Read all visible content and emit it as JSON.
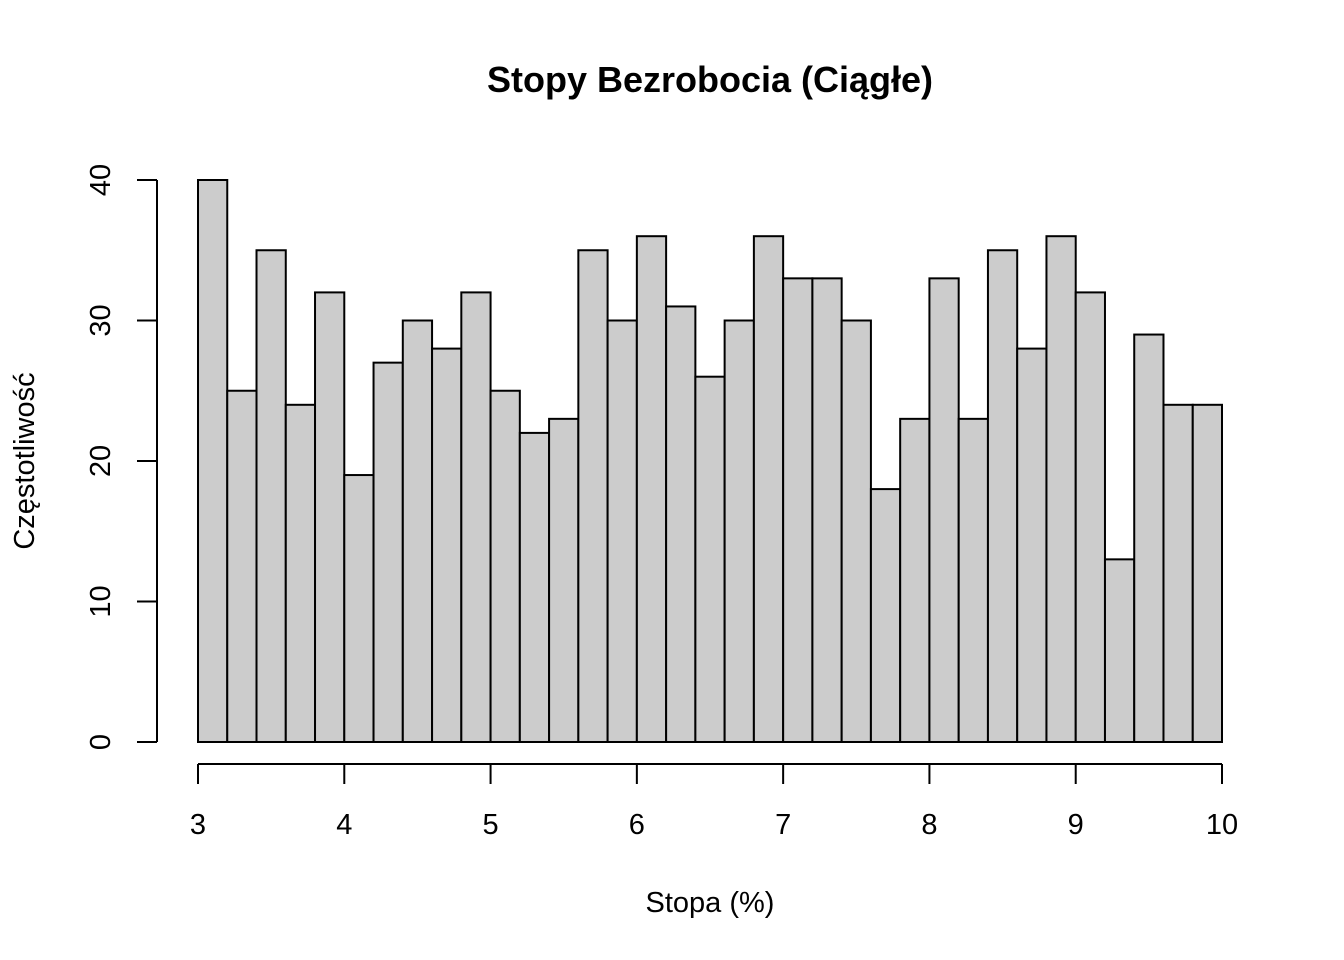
{
  "chart_data": {
    "type": "bar",
    "title": "Stopy Bezrobocia (Ciągłe)",
    "xlabel": "Stopa (%)",
    "ylabel": "Częstotliwość",
    "xlim": [
      3,
      10
    ],
    "ylim": [
      0,
      40
    ],
    "bin_width": 0.2,
    "bin_start": 3,
    "values": [
      40,
      25,
      35,
      24,
      32,
      19,
      27,
      30,
      28,
      32,
      25,
      22,
      23,
      35,
      30,
      36,
      31,
      26,
      30,
      36,
      33,
      33,
      30,
      18,
      23,
      33,
      23,
      35,
      28,
      36,
      32,
      13,
      29,
      24,
      24
    ],
    "x_ticks": [
      "3",
      "4",
      "5",
      "6",
      "7",
      "8",
      "9",
      "10"
    ],
    "y_ticks": [
      "0",
      "10",
      "20",
      "30",
      "40"
    ],
    "bar_color": "#cccccc",
    "grid": false
  }
}
